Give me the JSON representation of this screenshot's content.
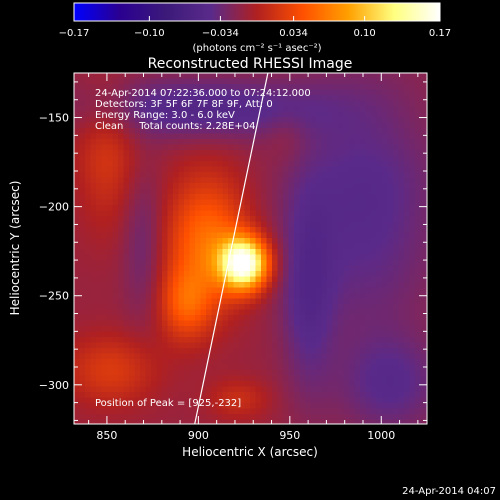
{
  "chart_data": {
    "type": "heatmap",
    "title": "Reconstructed RHESSI Image",
    "xlabel": "Heliocentric X (arcsec)",
    "ylabel": "Heliocentric Y (arcsec)",
    "xlim": [
      832,
      1025
    ],
    "ylim": [
      -322,
      -125
    ],
    "x_ticks": [
      850,
      900,
      950,
      1000
    ],
    "y_ticks": [
      -150,
      -200,
      -250,
      -300
    ],
    "colorbar": {
      "min": -0.17,
      "max": 0.17,
      "tick_values": [
        -0.17,
        -0.1,
        -0.034,
        0.034,
        0.1,
        0.17
      ],
      "tick_labels": [
        "-0.17",
        "-0.10",
        "-0.034",
        "0.034",
        "0.10",
        "0.17"
      ],
      "unit_label": "(photons cm⁻² s⁻¹ asec⁻²)",
      "colormap": [
        "#0000ff",
        "#2a0090",
        "#3b1a7a",
        "#5a2a8a",
        "#b02020",
        "#ff5000",
        "#ffa000",
        "#ffff80",
        "#ffffff"
      ]
    },
    "annotations": [
      "24-Apr-2014 07:22:36.000 to 07:24:12.000",
      "Detectors: 3F 5F 6F 7F 8F 9F, Att: 0",
      "Energy Range: 3.0 - 6.0 keV",
      "Clean     Total counts: 2.28E+04"
    ],
    "peak_label": "Position of Peak = [925,-232]",
    "peak": {
      "x": 925,
      "y": -232
    },
    "limb_line": [
      [
        898,
        -322
      ],
      [
        938,
        -125
      ]
    ],
    "sources": [
      {
        "x": 925,
        "y": -232,
        "amp": 0.18,
        "sx": 9,
        "sy": 10
      },
      {
        "x": 905,
        "y": -220,
        "amp": 0.07,
        "sx": 16,
        "sy": 26
      },
      {
        "x": 893,
        "y": -255,
        "amp": 0.05,
        "sx": 10,
        "sy": 14
      },
      {
        "x": 850,
        "y": -172,
        "amp": 0.03,
        "sx": 12,
        "sy": 28
      },
      {
        "x": 852,
        "y": -292,
        "amp": 0.035,
        "sx": 18,
        "sy": 14
      },
      {
        "x": 922,
        "y": -308,
        "amp": 0.025,
        "sx": 12,
        "sy": 8
      },
      {
        "x": 948,
        "y": -160,
        "amp": 0.01,
        "sx": 8,
        "sy": 10
      },
      {
        "x": 990,
        "y": -200,
        "amp": -0.035,
        "sx": 30,
        "sy": 50
      },
      {
        "x": 1005,
        "y": -300,
        "amp": -0.03,
        "sx": 20,
        "sy": 20
      },
      {
        "x": 900,
        "y": -145,
        "amp": -0.04,
        "sx": 45,
        "sy": 12
      },
      {
        "x": 870,
        "y": -220,
        "amp": -0.025,
        "sx": 8,
        "sy": 30
      },
      {
        "x": 960,
        "y": -250,
        "amp": -0.03,
        "sx": 10,
        "sy": 40
      }
    ],
    "footer_date": "24-Apr-2014 04:07"
  }
}
